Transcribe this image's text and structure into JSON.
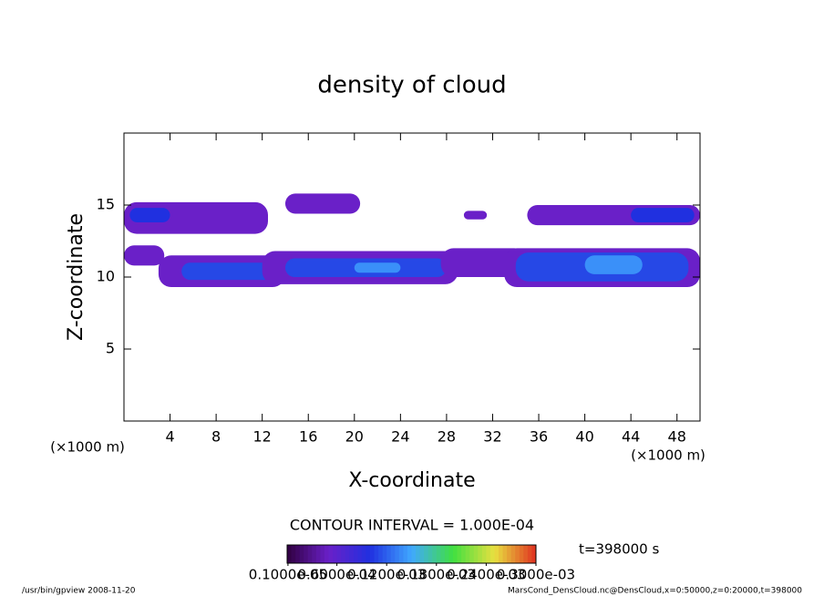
{
  "chart_data": {
    "type": "contour",
    "title": "density of cloud",
    "xlabel": "X-coordinate",
    "ylabel": "Z-coordinate",
    "xunit": "(×1000 m)",
    "yunit": "(×1000 m)",
    "xlim": [
      0,
      50
    ],
    "ylim": [
      0,
      20
    ],
    "xticks": [
      4,
      8,
      12,
      16,
      20,
      24,
      28,
      32,
      36,
      40,
      44,
      48
    ],
    "yticks": [
      5,
      10,
      15
    ],
    "contour_interval": "CONTOUR INTERVAL = 1.000E-04",
    "time": "t=398000 s",
    "colorbar": {
      "lim": [
        0,
        0.0003
      ],
      "colors": [
        "#300040",
        "#6a20c8",
        "#2030e0",
        "#40a8ff",
        "#40e040",
        "#e8e040",
        "#e03020"
      ],
      "ticks": [
        {
          "value": 1e-06,
          "label": "0.1000e-05"
        },
        {
          "value": 6e-05,
          "label": "0.6000e-04"
        },
        {
          "value": 0.00012,
          "label": "0.1200e-03"
        },
        {
          "value": 0.00018,
          "label": "0.1800e-03"
        },
        {
          "value": 0.00024,
          "label": "0.2400e-03"
        },
        {
          "value": 0.0003,
          "label": "0.3000e-03"
        }
      ]
    },
    "regions": [
      {
        "x0": 0,
        "x1": 12.5,
        "z0": 13,
        "z1": 15.2,
        "value": 5e-05
      },
      {
        "x0": 0.5,
        "x1": 4,
        "z0": 13.8,
        "z1": 14.8,
        "value": 0.0001
      },
      {
        "x0": 14,
        "x1": 20.5,
        "z0": 14.4,
        "z1": 15.8,
        "value": 5e-05
      },
      {
        "x0": 29.5,
        "x1": 31.5,
        "z0": 14,
        "z1": 14.6,
        "value": 5e-05
      },
      {
        "x0": 35,
        "x1": 50,
        "z0": 13.6,
        "z1": 15,
        "value": 5e-05
      },
      {
        "x0": 44,
        "x1": 49.5,
        "z0": 13.8,
        "z1": 14.8,
        "value": 0.0001
      },
      {
        "x0": 0,
        "x1": 3.5,
        "z0": 10.8,
        "z1": 12.2,
        "value": 5e-05
      },
      {
        "x0": 3,
        "x1": 14,
        "z0": 9.3,
        "z1": 11.5,
        "value": 5e-05
      },
      {
        "x0": 5,
        "x1": 13,
        "z0": 9.8,
        "z1": 11,
        "value": 0.00011
      },
      {
        "x0": 12,
        "x1": 29,
        "z0": 9.5,
        "z1": 11.8,
        "value": 5e-05
      },
      {
        "x0": 14,
        "x1": 28,
        "z0": 10,
        "z1": 11.3,
        "value": 0.00011
      },
      {
        "x0": 20,
        "x1": 24,
        "z0": 10.3,
        "z1": 11,
        "value": 0.00014
      },
      {
        "x0": 27.5,
        "x1": 35,
        "z0": 10,
        "z1": 12,
        "value": 5e-05
      },
      {
        "x0": 33,
        "x1": 50,
        "z0": 9.3,
        "z1": 12,
        "value": 5e-05
      },
      {
        "x0": 34,
        "x1": 49,
        "z0": 9.7,
        "z1": 11.7,
        "value": 0.00011
      },
      {
        "x0": 40,
        "x1": 45,
        "z0": 10.2,
        "z1": 11.5,
        "value": 0.00014
      }
    ],
    "footer_left": "/usr/bin/gpview  2008-11-20",
    "footer_right": "MarsCond_DensCloud.nc@DensCloud,x=0:50000,z=0:20000,t=398000"
  }
}
